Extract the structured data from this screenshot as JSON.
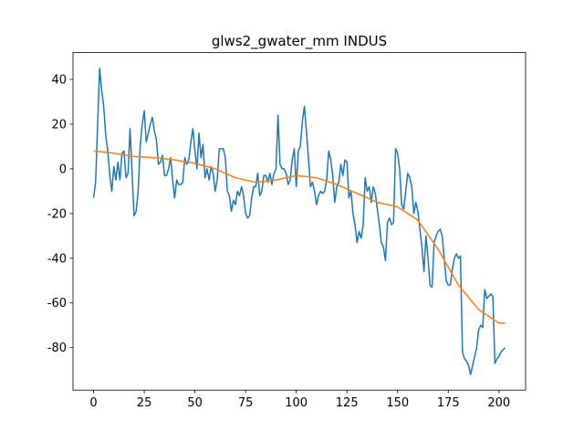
{
  "chart_data": {
    "type": "line",
    "title": "glws2_gwater_mm INDUS",
    "series": [
      {
        "color": "#1f77b4",
        "x": [
          0,
          1,
          2,
          3,
          4,
          5,
          6,
          7,
          8,
          9,
          10,
          11,
          12,
          13,
          14,
          15,
          16,
          17,
          18,
          19,
          20,
          21,
          22,
          23,
          24,
          25,
          26,
          27,
          28,
          29,
          30,
          31,
          32,
          33,
          34,
          35,
          36,
          37,
          38,
          39,
          40,
          41,
          42,
          43,
          44,
          45,
          46,
          47,
          48,
          49,
          50,
          51,
          52,
          53,
          54,
          55,
          56,
          57,
          58,
          59,
          60,
          61,
          62,
          63,
          64,
          65,
          66,
          67,
          68,
          69,
          70,
          71,
          72,
          73,
          74,
          75,
          76,
          77,
          78,
          79,
          80,
          81,
          82,
          83,
          84,
          85,
          86,
          87,
          88,
          89,
          90,
          91,
          92,
          93,
          94,
          95,
          96,
          97,
          98,
          99,
          100,
          101,
          102,
          103,
          104,
          105,
          106,
          107,
          108,
          109,
          110,
          111,
          112,
          113,
          114,
          115,
          116,
          117,
          118,
          119,
          120,
          121,
          122,
          123,
          124,
          125,
          126,
          127,
          128,
          129,
          130,
          131,
          132,
          133,
          134,
          135,
          136,
          137,
          138,
          139,
          140,
          141,
          142,
          143,
          144,
          145,
          146,
          147,
          148,
          149,
          150,
          151,
          152,
          153,
          154,
          155,
          156,
          157,
          158,
          159,
          160,
          161,
          162,
          163,
          164,
          165,
          166,
          167,
          168,
          169,
          170,
          171,
          172,
          173,
          174,
          175,
          176,
          177,
          178,
          179,
          180,
          181,
          182,
          183,
          184,
          185,
          186,
          187,
          188,
          189,
          190,
          191,
          192,
          193,
          194,
          195,
          196,
          197,
          198,
          199,
          200,
          201,
          202,
          203
        ],
        "values": [
          -13,
          -6,
          20,
          45,
          35,
          28,
          15,
          8,
          -3,
          -10,
          1,
          -5,
          3,
          -5,
          7,
          8,
          -4,
          -2,
          18,
          -2,
          -21,
          -19,
          -10,
          10,
          20,
          26,
          12,
          16,
          20,
          23,
          17,
          13,
          2,
          3,
          6,
          -3,
          -3,
          0,
          5,
          -5,
          -13,
          -5,
          -7,
          -7,
          -6,
          5,
          2,
          4,
          12,
          18,
          8,
          0,
          16,
          5,
          11,
          -4,
          0,
          -5,
          1,
          -2,
          -10,
          -5,
          9,
          9,
          9,
          5,
          -10,
          -12,
          -19,
          -14,
          -16,
          -10,
          -12,
          -8,
          -12,
          -20,
          -22,
          -21,
          -13,
          -8,
          -8,
          -2,
          -12,
          -10,
          -3,
          -3,
          -6,
          -2,
          -7,
          -2,
          0,
          24,
          2,
          0,
          0,
          -2,
          -7,
          -5,
          4,
          9,
          -8,
          8,
          10,
          21,
          28,
          17,
          5,
          -8,
          -6,
          -10,
          -16,
          -12,
          -10,
          -11,
          -10,
          -5,
          8,
          4,
          -3,
          -15,
          -8,
          -6,
          2,
          -3,
          4,
          3,
          -13,
          -10,
          -20,
          -25,
          -33,
          -28,
          -31,
          -25,
          -4,
          -10,
          -8,
          -15,
          -8,
          -11,
          -18,
          -25,
          -33,
          -35,
          -41,
          -24,
          -22,
          -25,
          -24,
          9,
          7,
          0,
          -16,
          -18,
          -10,
          -2,
          -4,
          -8,
          -20,
          -15,
          -19,
          -27,
          -35,
          -46,
          -30,
          -40,
          -52,
          -53,
          -33,
          -30,
          -28,
          -27,
          -30,
          -40,
          -50,
          -52,
          -52,
          -45,
          -40,
          -38,
          -40,
          -39,
          -82,
          -85,
          -86,
          -88,
          -92,
          -88,
          -84,
          -80,
          -72,
          -70,
          -71,
          -54,
          -58,
          -57,
          -56,
          -57,
          -87,
          -85,
          -84,
          -82,
          -81,
          -80
        ]
      },
      {
        "color": "#ff7f0e",
        "x": [
          0,
          10,
          20,
          30,
          40,
          50,
          60,
          70,
          80,
          90,
          100,
          110,
          120,
          130,
          140,
          150,
          160,
          170,
          180,
          190,
          200,
          203
        ],
        "values": [
          8,
          7,
          5.5,
          5,
          4,
          2.5,
          0,
          -4,
          -6,
          -5,
          -3,
          -4,
          -7,
          -11,
          -15,
          -17,
          -23,
          -36,
          -52,
          -63,
          -69,
          -69
        ]
      }
    ],
    "xlim": [
      -10.15,
      213.15
    ],
    "xticks": [
      0,
      25,
      50,
      75,
      100,
      125,
      150,
      175,
      200
    ],
    "ylim": [
      -99,
      52
    ],
    "yticks": [
      -80,
      -60,
      -40,
      -20,
      0,
      20,
      40
    ],
    "grid": false
  }
}
